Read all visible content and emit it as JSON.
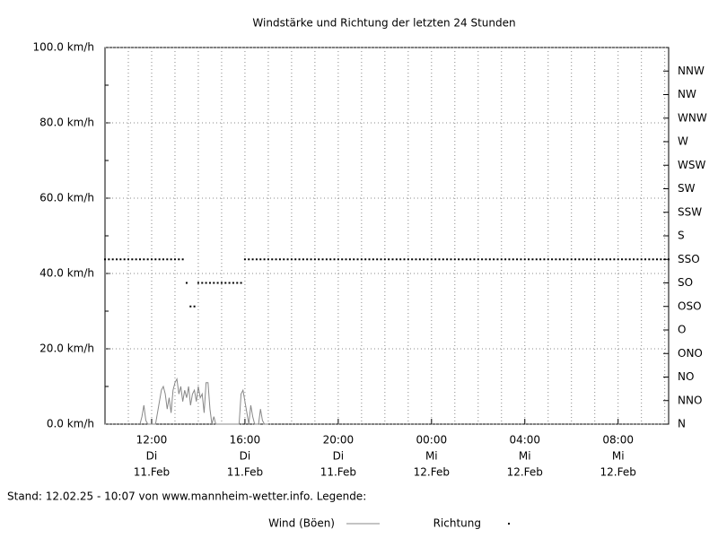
{
  "chart_data": {
    "type": "line",
    "title": "Windstärke und Richtung der letzten 24 Stunden",
    "xlim": [
      600,
      2050
    ],
    "xticks": [
      {
        "value": 720,
        "label": "12:00"
      },
      {
        "value": 960,
        "label": "16:00"
      },
      {
        "value": 1200,
        "label": "20:00"
      },
      {
        "value": 1440,
        "label": "00:00"
      },
      {
        "value": 1680,
        "label": "04:00"
      },
      {
        "value": 1920,
        "label": "08:00"
      }
    ],
    "xtick_weekdays": [
      "Di",
      "Di",
      "Di",
      "Mi",
      "Mi",
      "Mi"
    ],
    "xtick_dates": [
      "11.Feb",
      "11.Feb",
      "11.Feb",
      "12.Feb",
      "12.Feb",
      "12.Feb"
    ],
    "x_grid": [
      660,
      720,
      780,
      840,
      900,
      960,
      1020,
      1080,
      1140,
      1200,
      1260,
      1320,
      1380,
      1440,
      1500,
      1560,
      1620,
      1680,
      1740,
      1800,
      1860,
      1920,
      1980,
      2040
    ],
    "ylim": [
      0,
      100
    ],
    "yticks": [
      {
        "value": 0,
        "label": "0.0 km/h"
      },
      {
        "value": 20,
        "label": "20.0 km/h"
      },
      {
        "value": 40,
        "label": "40.0 km/h"
      },
      {
        "value": 60,
        "label": "60.0 km/h"
      },
      {
        "value": 80,
        "label": "80.0 km/h"
      },
      {
        "value": 100,
        "label": "100.0 km/h"
      }
    ],
    "yminor_ticks": [
      10,
      30,
      50,
      70,
      90
    ],
    "y2lim": [
      0,
      16
    ],
    "y2ticks": [
      {
        "value": 0,
        "label": "N"
      },
      {
        "value": 1,
        "label": "NNO"
      },
      {
        "value": 2,
        "label": "NO"
      },
      {
        "value": 3,
        "label": "ONO"
      },
      {
        "value": 4,
        "label": "O"
      },
      {
        "value": 5,
        "label": "OSO"
      },
      {
        "value": 6,
        "label": "SO"
      },
      {
        "value": 7,
        "label": "SSO"
      },
      {
        "value": 8,
        "label": "S"
      },
      {
        "value": 9,
        "label": "SSW"
      },
      {
        "value": 10,
        "label": "SW"
      },
      {
        "value": 11,
        "label": "WSW"
      },
      {
        "value": 12,
        "label": "W"
      },
      {
        "value": 13,
        "label": "WNW"
      },
      {
        "value": 14,
        "label": "NW"
      },
      {
        "value": 15,
        "label": "NNW"
      }
    ],
    "grid": true,
    "footer": "Stand: 12.02.25 - 10:07 von www.mannheim-wetter.info. Legende:",
    "series": [
      {
        "name": "Wind (Böen)",
        "color": "#888888",
        "mode": "line",
        "x": [
          690,
          695,
          700,
          705,
          710,
          715,
          720,
          725,
          730,
          735,
          740,
          745,
          750,
          755,
          760,
          765,
          770,
          775,
          780,
          785,
          790,
          795,
          800,
          805,
          810,
          815,
          820,
          825,
          830,
          835,
          840,
          845,
          850,
          855,
          860,
          865,
          870,
          875,
          880,
          885,
          890,
          895,
          900,
          905,
          910,
          915,
          920,
          925,
          930,
          935,
          940,
          945,
          950,
          955,
          960,
          965,
          970,
          975,
          980,
          985,
          990,
          995,
          1000,
          1005,
          1010,
          1015,
          1020
        ],
        "values": [
          0,
          2,
          5,
          1,
          0,
          0,
          0,
          0,
          0,
          3,
          6,
          9,
          10,
          8,
          4,
          7,
          3,
          9,
          11,
          12,
          8,
          10,
          6,
          9,
          7,
          10,
          5,
          8,
          9,
          6,
          10,
          7,
          8,
          3,
          11,
          11,
          4,
          0,
          2,
          0,
          0,
          0,
          0,
          0,
          0,
          0,
          0,
          0,
          0,
          0,
          0,
          0,
          8,
          9,
          6,
          3,
          0,
          5,
          2,
          0,
          0,
          0,
          4,
          1,
          0,
          0,
          0
        ]
      },
      {
        "name": "Richtung",
        "color": "#000000",
        "mode": "markers",
        "axis": "y2",
        "x": [
          600,
          610,
          620,
          630,
          640,
          650,
          660,
          670,
          680,
          690,
          700,
          710,
          720,
          730,
          740,
          750,
          760,
          770,
          780,
          790,
          800,
          810,
          820,
          830,
          840,
          850,
          860,
          870,
          880,
          890,
          900,
          910,
          920,
          930,
          940,
          950,
          960,
          970,
          980,
          990,
          1000,
          1010,
          1020,
          1030,
          1040,
          1050,
          1060,
          1070,
          1080,
          1090,
          1100,
          1110,
          1120,
          1130,
          1140,
          1150,
          1160,
          1170,
          1180,
          1190,
          1200,
          1210,
          1220,
          1230,
          1240,
          1250,
          1260,
          1270,
          1280,
          1290,
          1300,
          1310,
          1320,
          1330,
          1340,
          1350,
          1360,
          1370,
          1380,
          1390,
          1400,
          1410,
          1420,
          1430,
          1440,
          1450,
          1460,
          1470,
          1480,
          1490,
          1500,
          1510,
          1520,
          1530,
          1540,
          1550,
          1560,
          1570,
          1580,
          1590,
          1600,
          1610,
          1620,
          1630,
          1640,
          1650,
          1660,
          1670,
          1680,
          1690,
          1700,
          1710,
          1720,
          1730,
          1740,
          1750,
          1760,
          1770,
          1780,
          1790,
          1800,
          1810,
          1820,
          1830,
          1840,
          1850,
          1860,
          1870,
          1880,
          1890,
          1900,
          1910,
          1920,
          1930,
          1940,
          1950,
          1960,
          1970,
          1980,
          1990,
          2000,
          2010,
          2020,
          2030,
          2040,
          2050
        ],
        "values": [
          7,
          7,
          7,
          7,
          7,
          7,
          7,
          7,
          7,
          7,
          7,
          7,
          7,
          7,
          7,
          7,
          7,
          7,
          7,
          7,
          7,
          6,
          5,
          5,
          6,
          6,
          6,
          6,
          6,
          6,
          6,
          6,
          6,
          6,
          6,
          6,
          7,
          7,
          7,
          7,
          7,
          7,
          7,
          7,
          7,
          7,
          7,
          7,
          7,
          7,
          7,
          7,
          7,
          7,
          7,
          7,
          7,
          7,
          7,
          7,
          7,
          7,
          7,
          7,
          7,
          7,
          7,
          7,
          7,
          7,
          7,
          7,
          7,
          7,
          7,
          7,
          7,
          7,
          7,
          7,
          7,
          7,
          7,
          7,
          7,
          7,
          7,
          7,
          7,
          7,
          7,
          7,
          7,
          7,
          7,
          7,
          7,
          7,
          7,
          7,
          7,
          7,
          7,
          7,
          7,
          7,
          7,
          7,
          7,
          7,
          7,
          7,
          7,
          7,
          7,
          7,
          7,
          7,
          7,
          7,
          7,
          7,
          7,
          7,
          7,
          7,
          7,
          7,
          7,
          7,
          7,
          7,
          7,
          7,
          7,
          7,
          7,
          7,
          7,
          7,
          7,
          7,
          7,
          7,
          7,
          7
        ]
      }
    ]
  }
}
